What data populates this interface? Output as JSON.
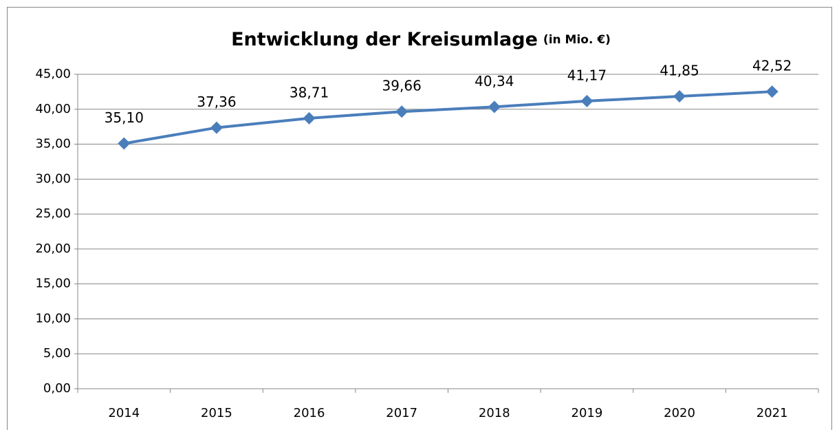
{
  "chart_data": {
    "type": "line",
    "title": "Entwicklung der Kreisumlage",
    "subtitle": "(in Mio. €)",
    "categories": [
      "2014",
      "2015",
      "2016",
      "2017",
      "2018",
      "2019",
      "2020",
      "2021"
    ],
    "series": [
      {
        "name": "Kreisumlage",
        "color": "#4a7ebb",
        "values": [
          35.1,
          37.36,
          38.71,
          39.66,
          40.34,
          41.17,
          41.85,
          42.52
        ],
        "value_labels": [
          "35,10",
          "37,36",
          "38,71",
          "39,66",
          "40,34",
          "41,17",
          "41,85",
          "42,52"
        ]
      }
    ],
    "ylim": [
      0,
      45
    ],
    "yticks": [
      {
        "value": 0,
        "label": "0,00"
      },
      {
        "value": 5,
        "label": "5,00"
      },
      {
        "value": 10,
        "label": "10,00"
      },
      {
        "value": 15,
        "label": "15,00"
      },
      {
        "value": 20,
        "label": "20,00"
      },
      {
        "value": 25,
        "label": "25,00"
      },
      {
        "value": 30,
        "label": "30,00"
      },
      {
        "value": 35,
        "label": "35,00"
      },
      {
        "value": 40,
        "label": "40,00"
      },
      {
        "value": 45,
        "label": "45,00"
      }
    ],
    "grid": true
  }
}
